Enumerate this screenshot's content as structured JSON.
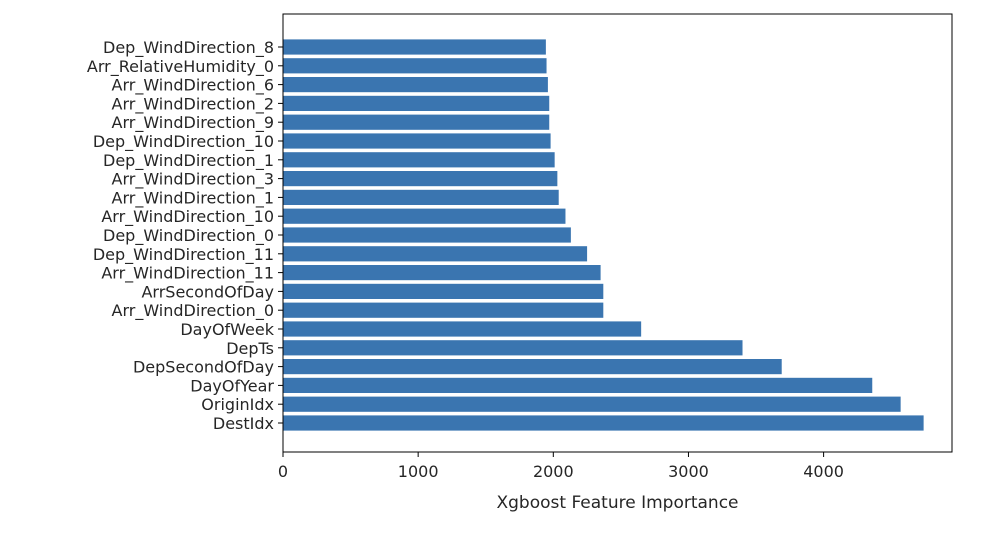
{
  "chart_data": {
    "type": "bar",
    "orientation": "horizontal",
    "title": "",
    "xlabel": "Xgboost Feature Importance",
    "ylabel": "",
    "xlim": [
      0,
      4950
    ],
    "x_ticks": [
      0,
      1000,
      2000,
      3000,
      4000
    ],
    "x_tick_labels": [
      "0",
      "1000",
      "2000",
      "3000",
      "4000"
    ],
    "grid": false,
    "legend": "none",
    "bar_color": "#3a75b0",
    "categories": [
      "DestIdx",
      "OriginIdx",
      "DayOfYear",
      "DepSecondOfDay",
      "DepTs",
      "DayOfWeek",
      "Arr_WindDirection_0",
      "ArrSecondOfDay",
      "Arr_WindDirection_11",
      "Dep_WindDirection_11",
      "Dep_WindDirection_0",
      "Arr_WindDirection_10",
      "Arr_WindDirection_1",
      "Arr_WindDirection_3",
      "Dep_WindDirection_1",
      "Dep_WindDirection_10",
      "Arr_WindDirection_9",
      "Arr_WindDirection_2",
      "Arr_WindDirection_6",
      "Arr_RelativeHumidity_0",
      "Dep_WindDirection_8"
    ],
    "values": [
      4740,
      4570,
      4360,
      3690,
      3400,
      2650,
      2370,
      2370,
      2350,
      2250,
      2130,
      2090,
      2040,
      2030,
      2010,
      1980,
      1970,
      1970,
      1960,
      1950,
      1945
    ]
  }
}
